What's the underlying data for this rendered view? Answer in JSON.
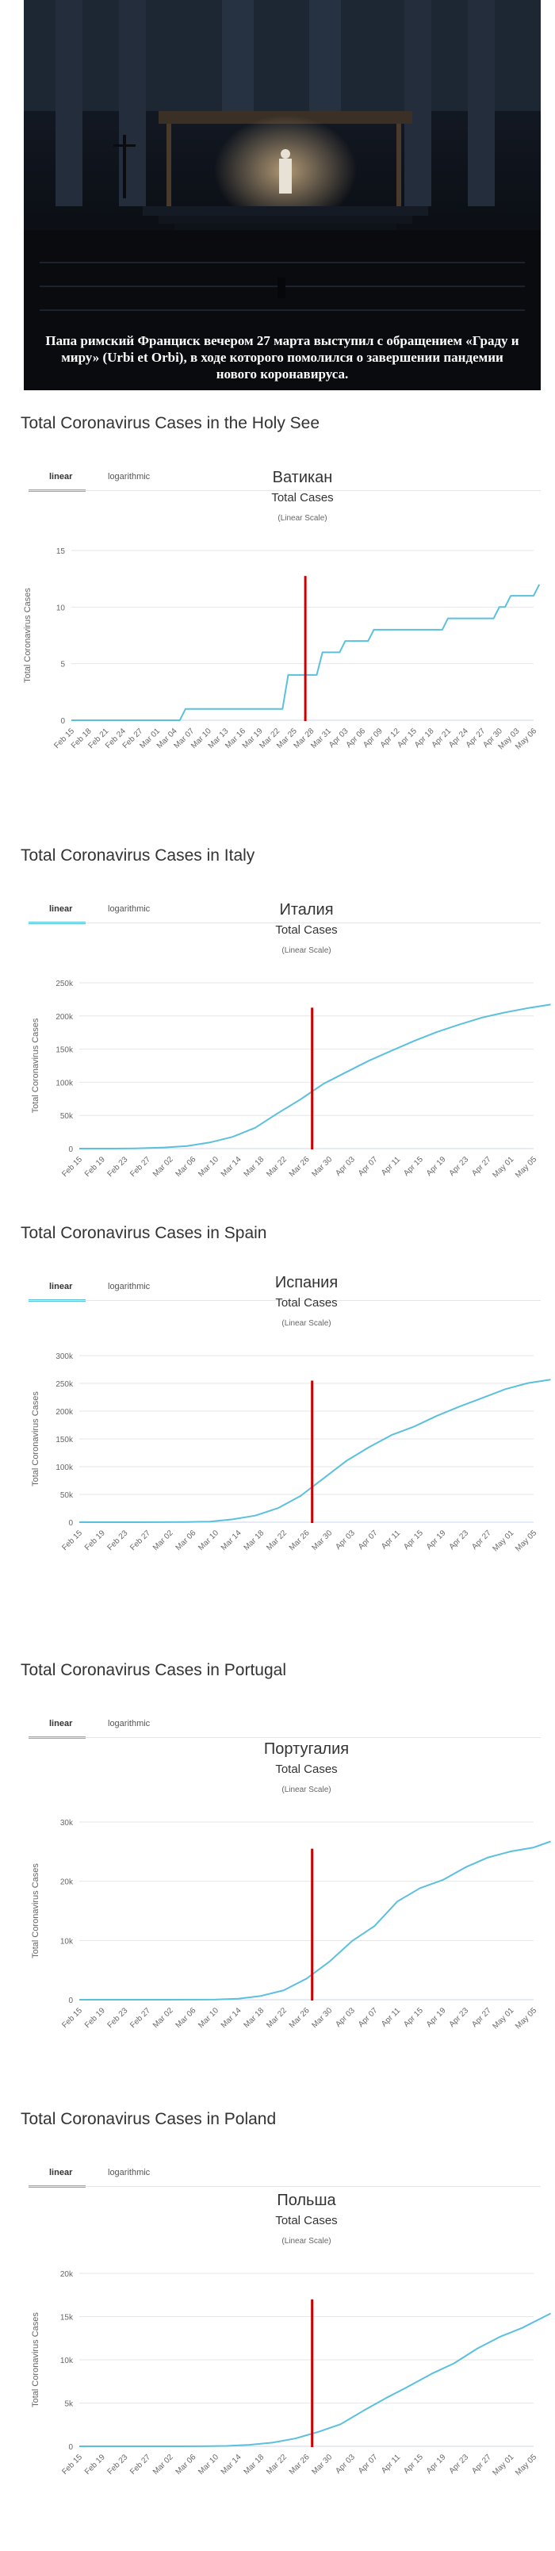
{
  "photo": {
    "caption": "Папа римский Франциск вечером 27 марта выступил с обращением «Граду и миру» (Urbi et Orbi), в ходе которого помолился о завершении пандемии нового коронавируса."
  },
  "tabs": {
    "linear": "linear",
    "logarithmic": "logarithmic"
  },
  "colors": {
    "line": "#5bc0de",
    "marker": "#cc0000",
    "tab_underline": "#5bc0de",
    "grid": "#e6e6e6"
  },
  "sections": [
    {
      "title": "Total Coronavirus Cases in the Holy See",
      "chart_data": {
        "type": "line",
        "title": "Ватикан",
        "subtitle": "Total Cases",
        "scale_note": "(Linear Scale)",
        "ylabel": "Total Coronavirus Cases",
        "ylim": [
          0,
          15
        ],
        "yticks": [
          0,
          5,
          10,
          15
        ],
        "ytick_labels": [
          "0",
          "5",
          "10",
          "15"
        ],
        "xticks": [
          "Feb 15",
          "Feb 18",
          "Feb 21",
          "Feb 24",
          "Feb 27",
          "Mar 01",
          "Mar 04",
          "Mar 07",
          "Mar 10",
          "Mar 13",
          "Mar 16",
          "Mar 19",
          "Mar 22",
          "Mar 25",
          "Mar 28",
          "Mar 31",
          "Apr 03",
          "Apr 06",
          "Apr 09",
          "Apr 12",
          "Apr 15",
          "Apr 18",
          "Apr 21",
          "Apr 24",
          "Apr 27",
          "Apr 30",
          "May 03",
          "May 06"
        ],
        "marker_date": "Mar 27",
        "series": [
          {
            "x": [
              "Feb 15",
              "Mar 05",
              "Mar 06",
              "Mar 23",
              "Mar 24",
              "Mar 29",
              "Mar 30",
              "Apr 02",
              "Apr 03",
              "Apr 07",
              "Apr 08",
              "Apr 20",
              "Apr 21",
              "Apr 29",
              "Apr 30",
              "May 01",
              "May 02",
              "May 06",
              "May 07"
            ],
            "values": [
              0,
              0,
              1,
              1,
              4,
              4,
              6,
              6,
              7,
              7,
              8,
              8,
              9,
              9,
              10,
              10,
              11,
              11,
              12
            ]
          }
        ]
      }
    },
    {
      "title": "Total Coronavirus Cases in Italy",
      "chart_data": {
        "type": "line",
        "title": "Италия",
        "subtitle": "Total Cases",
        "scale_note": "(Linear Scale)",
        "ylabel": "Total Coronavirus Cases",
        "ylim": [
          0,
          250000
        ],
        "yticks": [
          0,
          50000,
          100000,
          150000,
          200000,
          250000
        ],
        "ytick_labels": [
          "0",
          "50k",
          "100k",
          "150k",
          "200k",
          "250k"
        ],
        "xticks": [
          "Feb 15",
          "Feb 19",
          "Feb 23",
          "Feb 27",
          "Mar 02",
          "Mar 06",
          "Mar 10",
          "Mar 14",
          "Mar 18",
          "Mar 22",
          "Mar 26",
          "Mar 30",
          "Apr 03",
          "Apr 07",
          "Apr 11",
          "Apr 15",
          "Apr 19",
          "Apr 23",
          "Apr 27",
          "May 01",
          "May 05"
        ],
        "marker_date": "Mar 27",
        "series": [
          {
            "x": [
              "Feb 15",
              "Feb 21",
              "Feb 25",
              "Mar 01",
              "Mar 05",
              "Mar 09",
              "Mar 13",
              "Mar 17",
              "Mar 21",
              "Mar 25",
              "Mar 29",
              "Apr 02",
              "Apr 06",
              "Apr 10",
              "Apr 14",
              "Apr 18",
              "Apr 22",
              "Apr 26",
              "Apr 30",
              "May 04",
              "May 08"
            ],
            "values": [
              3,
              20,
              320,
              1700,
              3900,
              9200,
              17700,
              31500,
              53600,
              74400,
              97700,
              115200,
              132500,
              147600,
              162500,
              175900,
              187300,
              197700,
              205400,
              211900,
              217200
            ]
          }
        ]
      }
    },
    {
      "title": "Total Coronavirus Cases in Spain",
      "chart_data": {
        "type": "line",
        "title": "Испания",
        "subtitle": "Total Cases",
        "scale_note": "(Linear Scale)",
        "ylabel": "Total Coronavirus Cases",
        "ylim": [
          0,
          300000
        ],
        "yticks": [
          0,
          50000,
          100000,
          150000,
          200000,
          250000,
          300000
        ],
        "ytick_labels": [
          "0",
          "50k",
          "100k",
          "150k",
          "200k",
          "250k",
          "300k"
        ],
        "xticks": [
          "Feb 15",
          "Feb 19",
          "Feb 23",
          "Feb 27",
          "Mar 02",
          "Mar 06",
          "Mar 10",
          "Mar 14",
          "Mar 18",
          "Mar 22",
          "Mar 26",
          "Mar 30",
          "Apr 03",
          "Apr 07",
          "Apr 11",
          "Apr 15",
          "Apr 19",
          "Apr 23",
          "Apr 27",
          "May 01",
          "May 05"
        ],
        "marker_date": "Mar 27",
        "series": [
          {
            "x": [
              "Feb 15",
              "Feb 25",
              "Mar 01",
              "Mar 05",
              "Mar 09",
              "Mar 13",
              "Mar 17",
              "Mar 21",
              "Mar 25",
              "Mar 29",
              "Apr 02",
              "Apr 06",
              "Apr 10",
              "Apr 14",
              "Apr 18",
              "Apr 22",
              "Apr 26",
              "Apr 30",
              "May 04",
              "May 08"
            ],
            "values": [
              2,
              5,
              80,
              260,
              1200,
              5200,
              11800,
              25400,
              47600,
              78800,
              110200,
              135000,
              157000,
              172500,
              191700,
              208400,
              223800,
              239600,
              250600,
              256900
            ]
          }
        ]
      }
    },
    {
      "title": "Total Coronavirus Cases in Portugal",
      "chart_data": {
        "type": "line",
        "title": "Португалия",
        "subtitle": "Total Cases",
        "scale_note": "(Linear Scale)",
        "ylabel": "Total Coronavirus Cases",
        "ylim": [
          0,
          30000
        ],
        "yticks": [
          0,
          10000,
          20000,
          30000
        ],
        "ytick_labels": [
          "0",
          "10k",
          "20k",
          "30k"
        ],
        "xticks": [
          "Feb 15",
          "Feb 19",
          "Feb 23",
          "Feb 27",
          "Mar 02",
          "Mar 06",
          "Mar 10",
          "Mar 14",
          "Mar 18",
          "Mar 22",
          "Mar 26",
          "Mar 30",
          "Apr 03",
          "Apr 07",
          "Apr 11",
          "Apr 15",
          "Apr 19",
          "Apr 23",
          "Apr 27",
          "May 01",
          "May 05"
        ],
        "marker_date": "Mar 27",
        "series": [
          {
            "x": [
              "Feb 15",
              "Mar 02",
              "Mar 06",
              "Mar 10",
              "Mar 14",
              "Mar 18",
              "Mar 22",
              "Mar 26",
              "Mar 30",
              "Apr 03",
              "Apr 07",
              "Apr 11",
              "Apr 15",
              "Apr 19",
              "Apr 23",
              "Apr 27",
              "May 01",
              "May 05",
              "May 08"
            ],
            "values": [
              0,
              2,
              13,
              41,
              169,
              642,
              1600,
              3544,
              6408,
              9886,
              12442,
              16585,
              18841,
              20206,
              22353,
              24027,
              25045,
              25702,
              26715
            ]
          }
        ]
      }
    },
    {
      "title": "Total Coronavirus Cases in Poland",
      "chart_data": {
        "type": "line",
        "title": "Польша",
        "subtitle": "Total Cases",
        "scale_note": "(Linear Scale)",
        "ylabel": "Total Coronavirus Cases",
        "ylim": [
          0,
          20000
        ],
        "yticks": [
          0,
          5000,
          10000,
          15000,
          20000
        ],
        "ytick_labels": [
          "0",
          "5k",
          "10k",
          "15k",
          "20k"
        ],
        "xticks": [
          "Feb 15",
          "Feb 19",
          "Feb 23",
          "Feb 27",
          "Mar 02",
          "Mar 06",
          "Mar 10",
          "Mar 14",
          "Mar 18",
          "Mar 22",
          "Mar 26",
          "Mar 30",
          "Apr 03",
          "Apr 07",
          "Apr 11",
          "Apr 15",
          "Apr 19",
          "Apr 23",
          "Apr 27",
          "May 01",
          "May 05"
        ],
        "marker_date": "Mar 27",
        "series": [
          {
            "x": [
              "Feb 15",
              "Mar 04",
              "Mar 08",
              "Mar 12",
              "Mar 16",
              "Mar 20",
              "Mar 24",
              "Mar 28",
              "Apr 01",
              "Apr 05",
              "Apr 09",
              "Apr 13",
              "Apr 17",
              "Apr 21",
              "Apr 25",
              "Apr 29",
              "May 03",
              "May 08"
            ],
            "values": [
              0,
              1,
              11,
              49,
              177,
              425,
              901,
              1638,
              2554,
              4102,
              5575,
              6934,
              8379,
              9593,
              11273,
              12640,
              13693,
              15366
            ]
          }
        ]
      }
    }
  ]
}
